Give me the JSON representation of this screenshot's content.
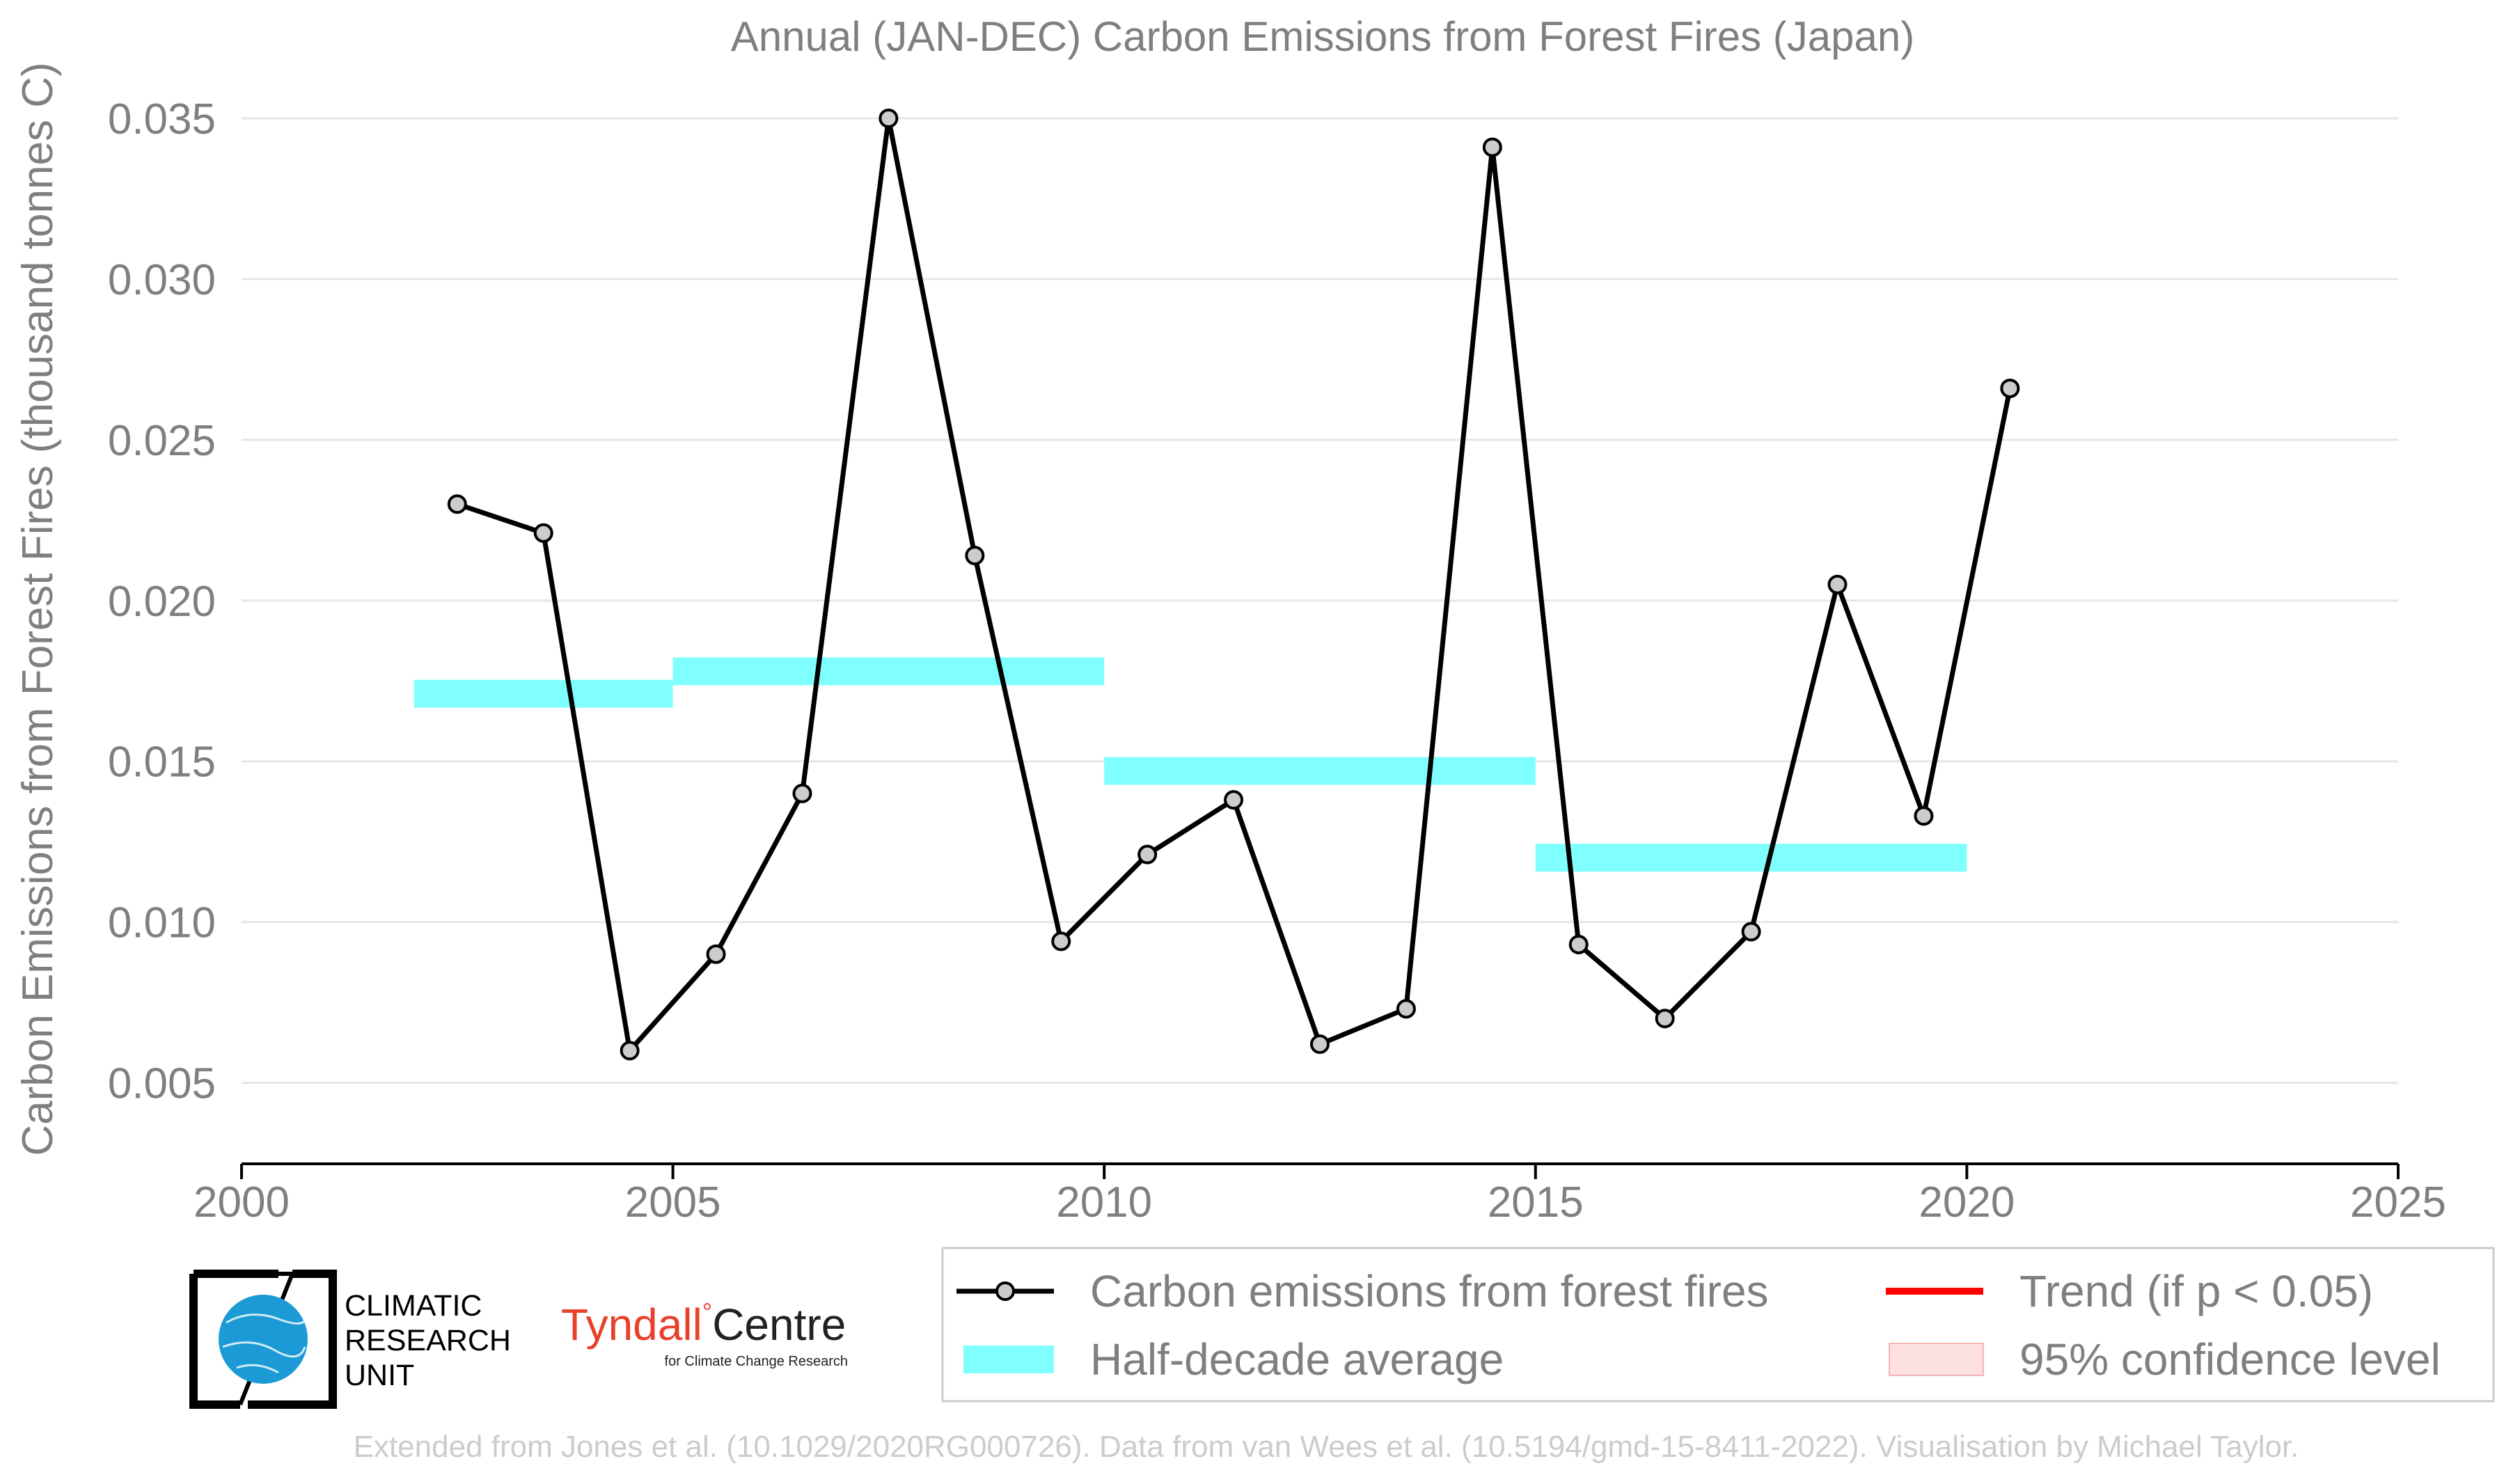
{
  "chart_data": {
    "type": "line",
    "title": "Annual (JAN-DEC) Carbon Emissions from Forest Fires (Japan)",
    "xlabel": "",
    "ylabel": "Carbon Emissions from Forest Fires (thousand tonnes C)",
    "xlim": [
      2000,
      2025
    ],
    "ylim": [
      0.0038,
      0.035
    ],
    "x_ticks": [
      "2000",
      "2005",
      "2010",
      "2015",
      "2020",
      "2025"
    ],
    "x_tick_values": [
      2000,
      2005,
      2010,
      2015,
      2020,
      2025
    ],
    "y_ticks": [
      "0.005",
      "0.010",
      "0.015",
      "0.020",
      "0.025",
      "0.030",
      "0.035"
    ],
    "y_tick_values": [
      0.005,
      0.01,
      0.015,
      0.02,
      0.025,
      0.03,
      0.035
    ],
    "grid": "horizontal",
    "series": [
      {
        "name": "Carbon emissions from forest fires",
        "color": "#000000",
        "marker_fill": "#cccccc",
        "x": [
          2002.5,
          2003.5,
          2004.5,
          2005.5,
          2006.5,
          2007.5,
          2008.5,
          2009.5,
          2010.5,
          2011.5,
          2012.5,
          2013.5,
          2014.5,
          2015.5,
          2016.5,
          2017.5,
          2018.5,
          2019.5,
          2020.5
        ],
        "y": [
          0.023,
          0.0221,
          0.006,
          0.009,
          0.014,
          0.035,
          0.0214,
          0.0094,
          0.0121,
          0.0138,
          0.0062,
          0.0073,
          0.0341,
          0.0093,
          0.007,
          0.0097,
          0.0205,
          0.0133,
          0.0266
        ]
      }
    ],
    "half_decade_average": {
      "name": "Half-decade average",
      "color": "#7ffffe",
      "segments": [
        {
          "x_start": 2002,
          "x_end": 2005,
          "value": 0.0171
        },
        {
          "x_start": 2005,
          "x_end": 2010,
          "value": 0.0178
        },
        {
          "x_start": 2010,
          "x_end": 2015,
          "value": 0.0147
        },
        {
          "x_start": 2015,
          "x_end": 2020,
          "value": 0.012
        }
      ]
    },
    "legend": {
      "placement": "bottom-right",
      "entries": [
        {
          "label": "Carbon emissions from forest fires",
          "kind": "line-marker",
          "color": "#000000"
        },
        {
          "label": "Trend (if p < 0.05)",
          "kind": "line",
          "color": "#ff0000"
        },
        {
          "label": "Half-decade average",
          "kind": "band",
          "color": "#7ffffe"
        },
        {
          "label": "95% confidence level",
          "kind": "band",
          "color": "#fde1e1"
        }
      ]
    }
  },
  "logos": {
    "cru_lines": [
      "CLIMATIC",
      "RESEARCH",
      "UNIT"
    ],
    "tyndall_word": "Tyndall",
    "tyndall_degree": "°",
    "tyndall_centre": "Centre",
    "tyndall_sub": "for Climate Change Research"
  },
  "credit": "Extended from Jones et al. (10.1029/2020RG000726). Data from van Wees et al. (10.5194/gmd-15-8411-2022). Visualisation by Michael Taylor."
}
